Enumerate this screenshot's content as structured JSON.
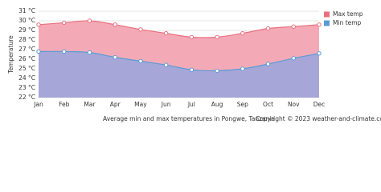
{
  "chart_data": {
    "type": "area",
    "caption": "Average min and max temperatures in Pongwe, Tanzania",
    "copyright": "Copyright © 2023  weather-and-climate.com",
    "y_label": "Temperature",
    "categories": [
      "Jan",
      "Feb",
      "Mar",
      "Apr",
      "May",
      "Jun",
      "Jul",
      "Aug",
      "Sep",
      "Oct",
      "Nov",
      "Dec"
    ],
    "series": [
      {
        "name": "Max temp",
        "color": "#e8707f",
        "fill": "#f4aab6",
        "values": [
          29.6,
          29.8,
          30.0,
          29.6,
          29.1,
          28.7,
          28.3,
          28.3,
          28.7,
          29.2,
          29.4,
          29.6
        ]
      },
      {
        "name": "Min temp",
        "color": "#5b9bd5",
        "fill": "#a6a6d8",
        "values": [
          26.8,
          26.8,
          26.7,
          26.2,
          25.8,
          25.4,
          24.9,
          24.8,
          25.0,
          25.5,
          26.1,
          26.6
        ]
      }
    ],
    "ylim": [
      22,
      31
    ],
    "yticks": [
      {
        "value": 22,
        "label": "22 °C"
      },
      {
        "value": 23,
        "label": "23 °C"
      },
      {
        "value": 24,
        "label": "24 °C"
      },
      {
        "value": 25,
        "label": "25 °C"
      },
      {
        "value": 26,
        "label": "26 °C"
      },
      {
        "value": 27,
        "label": "27 °C"
      },
      {
        "value": 28,
        "label": "28 °C"
      },
      {
        "value": 29,
        "label": "29 °C"
      },
      {
        "value": 30,
        "label": "30 °C"
      },
      {
        "value": 31,
        "label": "31 °C"
      }
    ],
    "grid": true,
    "legend": "top-right"
  }
}
